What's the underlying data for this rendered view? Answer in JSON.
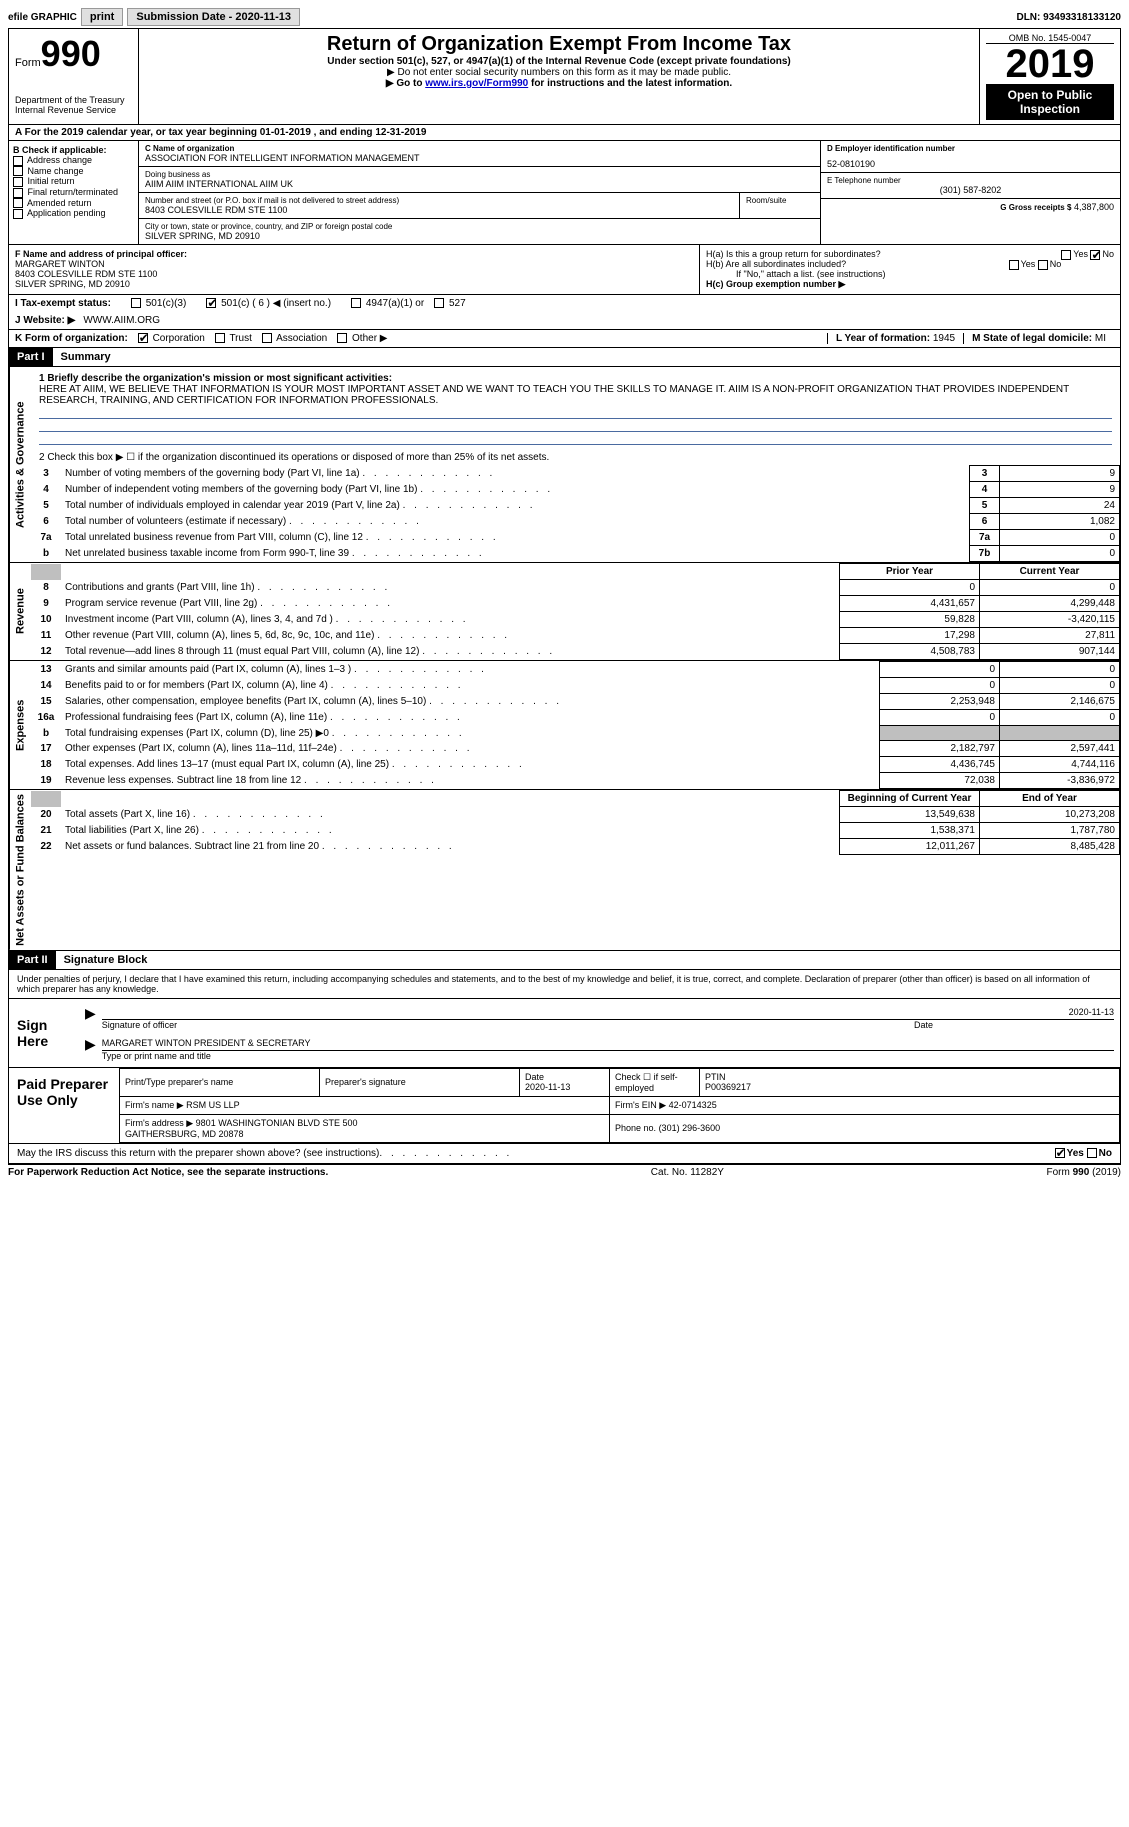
{
  "topbar": {
    "efile_label": "efile GRAPHIC",
    "print_btn": "print",
    "submission_label": "Submission Date - 2020-11-13",
    "dln": "DLN: 93493318133120"
  },
  "header": {
    "form_word": "Form",
    "form_num": "990",
    "dept": "Department of the Treasury\nInternal Revenue Service",
    "title": "Return of Organization Exempt From Income Tax",
    "subtitle": "Under section 501(c), 527, or 4947(a)(1) of the Internal Revenue Code (except private foundations)",
    "note1": "▶ Do not enter social security numbers on this form as it may be made public.",
    "note2_a": "▶ Go to ",
    "note2_link": "www.irs.gov/Form990",
    "note2_b": " for instructions and the latest information.",
    "omb": "OMB No. 1545-0047",
    "year": "2019",
    "open": "Open to Public Inspection"
  },
  "row_a": "A For the 2019 calendar year, or tax year beginning 01-01-2019   , and ending 12-31-2019",
  "col_b": {
    "header": "B Check if applicable:",
    "items": [
      "Address change",
      "Name change",
      "Initial return",
      "Final return/terminated",
      "Amended return",
      "Application pending"
    ]
  },
  "box_c": {
    "label_name": "C Name of organization",
    "name": "ASSOCIATION FOR INTELLIGENT INFORMATION MANAGEMENT",
    "dba_label": "Doing business as",
    "dba": "AIIM AIIM INTERNATIONAL AIIM UK",
    "addr_label": "Number and street (or P.O. box if mail is not delivered to street address)",
    "suite_label": "Room/suite",
    "addr": "8403 COLESVILLE RDM STE 1100",
    "city_label": "City or town, state or province, country, and ZIP or foreign postal code",
    "city": "SILVER SPRING, MD  20910"
  },
  "box_d": {
    "label": "D Employer identification number",
    "val": "52-0810190"
  },
  "box_e": {
    "label": "E Telephone number",
    "val": "(301) 587-8202"
  },
  "box_g": {
    "label": "G Gross receipts $",
    "val": "4,387,800"
  },
  "box_f": {
    "label": "F Name and address of principal officer:",
    "name": "MARGARET WINTON",
    "addr1": "8403 COLESVILLE RDM STE 1100",
    "addr2": "SILVER SPRING, MD  20910"
  },
  "box_h": {
    "ha": "H(a)  Is this a group return for subordinates?",
    "hb": "H(b)  Are all subordinates included?",
    "hb_note": "If \"No,\" attach a list. (see instructions)",
    "hc": "H(c)  Group exemption number ▶"
  },
  "row_i": {
    "label": "I   Tax-exempt status:",
    "opts": [
      "501(c)(3)",
      "501(c) ( 6 ) ◀ (insert no.)",
      "4947(a)(1) or",
      "527"
    ]
  },
  "row_j": {
    "label": "J   Website: ▶",
    "val": "WWW.AIIM.ORG"
  },
  "row_k": {
    "label": "K Form of organization:",
    "opts": [
      "Corporation",
      "Trust",
      "Association",
      "Other ▶"
    ]
  },
  "row_l": {
    "label": "L Year of formation:",
    "val": "1945"
  },
  "row_m": {
    "label": "M State of legal domicile:",
    "val": "MI"
  },
  "part1": {
    "label": "Part I",
    "title": "Summary",
    "section_ag": "Activities & Governance",
    "section_rev": "Revenue",
    "section_exp": "Expenses",
    "section_net": "Net Assets or Fund Balances",
    "q1_label": "1   Briefly describe the organization's mission or most significant activities:",
    "q1_text": "HERE AT AIIM, WE BELIEVE THAT INFORMATION IS YOUR MOST IMPORTANT ASSET AND WE WANT TO TEACH YOU THE SKILLS TO MANAGE IT. AIIM IS A NON-PROFIT ORGANIZATION THAT PROVIDES INDEPENDENT RESEARCH, TRAINING, AND CERTIFICATION FOR INFORMATION PROFESSIONALS.",
    "q2": "2   Check this box ▶ ☐ if the organization discontinued its operations or disposed of more than 25% of its net assets.",
    "lines_ag": [
      {
        "n": "3",
        "label": "Number of voting members of the governing body (Part VI, line 1a)",
        "box": "3",
        "val": "9"
      },
      {
        "n": "4",
        "label": "Number of independent voting members of the governing body (Part VI, line 1b)",
        "box": "4",
        "val": "9"
      },
      {
        "n": "5",
        "label": "Total number of individuals employed in calendar year 2019 (Part V, line 2a)",
        "box": "5",
        "val": "24"
      },
      {
        "n": "6",
        "label": "Total number of volunteers (estimate if necessary)",
        "box": "6",
        "val": "1,082"
      },
      {
        "n": "7a",
        "label": "Total unrelated business revenue from Part VIII, column (C), line 12",
        "box": "7a",
        "val": "0"
      },
      {
        "n": "b",
        "label": "Net unrelated business taxable income from Form 990-T, line 39",
        "box": "7b",
        "val": "0"
      }
    ],
    "col_prior": "Prior Year",
    "col_curr": "Current Year",
    "lines_rev": [
      {
        "n": "8",
        "label": "Contributions and grants (Part VIII, line 1h)",
        "prior": "0",
        "curr": "0"
      },
      {
        "n": "9",
        "label": "Program service revenue (Part VIII, line 2g)",
        "prior": "4,431,657",
        "curr": "4,299,448"
      },
      {
        "n": "10",
        "label": "Investment income (Part VIII, column (A), lines 3, 4, and 7d )",
        "prior": "59,828",
        "curr": "-3,420,115"
      },
      {
        "n": "11",
        "label": "Other revenue (Part VIII, column (A), lines 5, 6d, 8c, 9c, 10c, and 11e)",
        "prior": "17,298",
        "curr": "27,811"
      },
      {
        "n": "12",
        "label": "Total revenue—add lines 8 through 11 (must equal Part VIII, column (A), line 12)",
        "prior": "4,508,783",
        "curr": "907,144"
      }
    ],
    "lines_exp": [
      {
        "n": "13",
        "label": "Grants and similar amounts paid (Part IX, column (A), lines 1–3 )",
        "prior": "0",
        "curr": "0"
      },
      {
        "n": "14",
        "label": "Benefits paid to or for members (Part IX, column (A), line 4)",
        "prior": "0",
        "curr": "0"
      },
      {
        "n": "15",
        "label": "Salaries, other compensation, employee benefits (Part IX, column (A), lines 5–10)",
        "prior": "2,253,948",
        "curr": "2,146,675"
      },
      {
        "n": "16a",
        "label": "Professional fundraising fees (Part IX, column (A), line 11e)",
        "prior": "0",
        "curr": "0"
      },
      {
        "n": "b",
        "label": "Total fundraising expenses (Part IX, column (D), line 25) ▶0",
        "prior": "",
        "curr": "",
        "grey": true
      },
      {
        "n": "17",
        "label": "Other expenses (Part IX, column (A), lines 11a–11d, 11f–24e)",
        "prior": "2,182,797",
        "curr": "2,597,441"
      },
      {
        "n": "18",
        "label": "Total expenses. Add lines 13–17 (must equal Part IX, column (A), line 25)",
        "prior": "4,436,745",
        "curr": "4,744,116"
      },
      {
        "n": "19",
        "label": "Revenue less expenses. Subtract line 18 from line 12",
        "prior": "72,038",
        "curr": "-3,836,972"
      }
    ],
    "col_beg": "Beginning of Current Year",
    "col_end": "End of Year",
    "lines_net": [
      {
        "n": "20",
        "label": "Total assets (Part X, line 16)",
        "prior": "13,549,638",
        "curr": "10,273,208"
      },
      {
        "n": "21",
        "label": "Total liabilities (Part X, line 26)",
        "prior": "1,538,371",
        "curr": "1,787,780"
      },
      {
        "n": "22",
        "label": "Net assets or fund balances. Subtract line 21 from line 20",
        "prior": "12,011,267",
        "curr": "8,485,428"
      }
    ]
  },
  "part2": {
    "label": "Part II",
    "title": "Signature Block",
    "decl": "Under penalties of perjury, I declare that I have examined this return, including accompanying schedules and statements, and to the best of my knowledge and belief, it is true, correct, and complete. Declaration of preparer (other than officer) is based on all information of which preparer has any knowledge.",
    "sign_here": "Sign Here",
    "sig_officer": "Signature of officer",
    "sig_date": "2020-11-13",
    "date_label": "Date",
    "sig_name": "MARGARET WINTON  PRESIDENT & SECRETARY",
    "sig_name_label": "Type or print name and title",
    "paid": "Paid Preparer Use Only",
    "prep_name_label": "Print/Type preparer's name",
    "prep_sig_label": "Preparer's signature",
    "prep_date": "2020-11-13",
    "check_if": "Check ☐ if self-employed",
    "ptin_label": "PTIN",
    "ptin": "P00369217",
    "firm_name_label": "Firm's name    ▶",
    "firm_name": "RSM US LLP",
    "firm_ein_label": "Firm's EIN ▶",
    "firm_ein": "42-0714325",
    "firm_addr_label": "Firm's address ▶",
    "firm_addr": "9801 WASHINGTONIAN BLVD STE 500\nGAITHERSBURG, MD  20878",
    "phone_label": "Phone no.",
    "phone": "(301) 296-3600",
    "discuss": "May the IRS discuss this return with the preparer shown above? (see instructions)",
    "yes": "Yes",
    "no": "No"
  },
  "footer": {
    "left": "For Paperwork Reduction Act Notice, see the separate instructions.",
    "mid": "Cat. No. 11282Y",
    "right": "Form 990 (2019)"
  }
}
